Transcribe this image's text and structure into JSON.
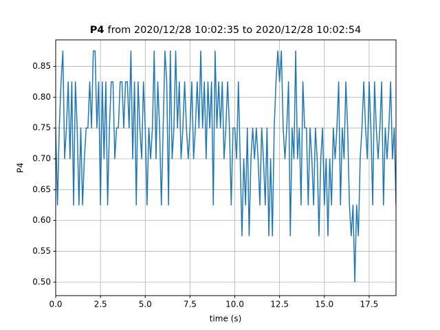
{
  "chart_data": {
    "type": "line",
    "title": {
      "bold": "P4",
      "text": "from 2020/12/28 10:02:35 to 2020/12/28 10:02:54"
    },
    "x_label": "time (s)",
    "y_label": "P4",
    "xlim": [
      0,
      19
    ],
    "ylim": [
      0.478,
      0.893
    ],
    "xticks": [
      {
        "value": 0,
        "label": "0.0"
      },
      2.5,
      {
        "value": 5,
        "label": "5.0"
      },
      7.5,
      {
        "value": 10,
        "label": "10.0"
      },
      12.5,
      {
        "value": 15,
        "label": "15.0"
      },
      17.5
    ],
    "yticks": [
      {
        "value": 0.5,
        "label": "0.50"
      },
      0.55,
      {
        "value": 0.6,
        "label": "0.60"
      },
      0.65,
      {
        "value": 0.7,
        "label": "0.70"
      },
      0.75,
      {
        "value": 0.8,
        "label": "0.80"
      },
      0.85
    ],
    "grid": true,
    "series": [
      {
        "color": "#1f77b4",
        "x": [
          0,
          0.1,
          0.2,
          0.3,
          0.4,
          0.5,
          0.6,
          0.7,
          0.8,
          0.9,
          1,
          1.1,
          1.2,
          1.3,
          1.4,
          1.5,
          1.6,
          1.7,
          1.8,
          1.9,
          2,
          2.1,
          2.2,
          2.3,
          2.4,
          2.5,
          2.6,
          2.7,
          2.8,
          2.9,
          3,
          3.1,
          3.2,
          3.3,
          3.4,
          3.5,
          3.6,
          3.7,
          3.8,
          3.9,
          4,
          4.1,
          4.2,
          4.3,
          4.4,
          4.5,
          4.6,
          4.7,
          4.8,
          4.9,
          5,
          5.1,
          5.2,
          5.3,
          5.4,
          5.5,
          5.6,
          5.7,
          5.8,
          5.9,
          6,
          6.1,
          6.2,
          6.3,
          6.4,
          6.5,
          6.6,
          6.7,
          6.8,
          6.9,
          7,
          7.1,
          7.2,
          7.3,
          7.4,
          7.5,
          7.6,
          7.7,
          7.8,
          7.9,
          8,
          8.1,
          8.2,
          8.3,
          8.4,
          8.5,
          8.6,
          8.7,
          8.8,
          8.9,
          9,
          9.1,
          9.2,
          9.3,
          9.4,
          9.5,
          9.6,
          9.7,
          9.8,
          9.9,
          10,
          10.1,
          10.2,
          10.3,
          10.4,
          10.5,
          10.6,
          10.7,
          10.8,
          10.9,
          11,
          11.1,
          11.2,
          11.3,
          11.4,
          11.5,
          11.6,
          11.7,
          11.8,
          11.9,
          12,
          12.1,
          12.2,
          12.3,
          12.4,
          12.5,
          12.6,
          12.7,
          12.8,
          12.9,
          13,
          13.1,
          13.2,
          13.3,
          13.4,
          13.5,
          13.6,
          13.7,
          13.8,
          13.9,
          14,
          14.1,
          14.2,
          14.3,
          14.4,
          14.5,
          14.6,
          14.7,
          14.8,
          14.9,
          15,
          15.1,
          15.2,
          15.3,
          15.4,
          15.5,
          15.6,
          15.7,
          15.8,
          15.9,
          16,
          16.1,
          16.2,
          16.3,
          16.4,
          16.5,
          16.6,
          16.7,
          16.8,
          16.9,
          17,
          17.1,
          17.2,
          17.3,
          17.4,
          17.5,
          17.6,
          17.7,
          17.8,
          17.9,
          18,
          18.1,
          18.2,
          18.3,
          18.4,
          18.5,
          18.6,
          18.7,
          18.8,
          18.9,
          19
        ],
        "values": [
          0.75,
          0.625,
          0.75,
          0.825,
          0.875,
          0.7,
          0.75,
          0.825,
          0.7,
          0.825,
          0.625,
          0.825,
          0.75,
          0.625,
          0.75,
          0.625,
          0.7,
          0.75,
          0.75,
          0.825,
          0.75,
          0.875,
          0.875,
          0.75,
          0.825,
          0.625,
          0.825,
          0.7,
          0.825,
          0.625,
          0.75,
          0.825,
          0.825,
          0.7,
          0.75,
          0.75,
          0.825,
          0.825,
          0.75,
          0.825,
          0.825,
          0.75,
          0.875,
          0.7,
          0.825,
          0.625,
          0.825,
          0.75,
          0.7,
          0.825,
          0.75,
          0.625,
          0.75,
          0.7,
          0.75,
          0.875,
          0.7,
          0.825,
          0.75,
          0.625,
          0.75,
          0.875,
          0.825,
          0.625,
          0.875,
          0.7,
          0.75,
          0.875,
          0.75,
          0.825,
          0.7,
          0.75,
          0.825,
          0.75,
          0.7,
          0.75,
          0.825,
          0.7,
          0.75,
          0.825,
          0.75,
          0.875,
          0.75,
          0.825,
          0.7,
          0.825,
          0.75,
          0.825,
          0.625,
          0.875,
          0.75,
          0.825,
          0.75,
          0.825,
          0.7,
          0.75,
          0.825,
          0.75,
          0.625,
          0.75,
          0.75,
          0.7,
          0.825,
          0.7,
          0.575,
          0.7,
          0.625,
          0.75,
          0.575,
          0.7,
          0.75,
          0.7,
          0.75,
          0.7,
          0.625,
          0.75,
          0.7,
          0.625,
          0.75,
          0.575,
          0.7,
          0.575,
          0.75,
          0.825,
          0.875,
          0.825,
          0.875,
          0.75,
          0.7,
          0.75,
          0.825,
          0.575,
          0.75,
          0.7,
          0.875,
          0.7,
          0.75,
          0.625,
          0.825,
          0.75,
          0.75,
          0.625,
          0.75,
          0.7,
          0.625,
          0.75,
          0.7,
          0.575,
          0.7,
          0.75,
          0.625,
          0.7,
          0.575,
          0.7,
          0.625,
          0.75,
          0.7,
          0.75,
          0.825,
          0.625,
          0.75,
          0.7,
          0.825,
          0.75,
          0.625,
          0.575,
          0.625,
          0.5,
          0.625,
          0.575,
          0.7,
          0.75,
          0.825,
          0.75,
          0.7,
          0.825,
          0.75,
          0.625,
          0.825,
          0.75,
          0.7,
          0.75,
          0.825,
          0.625,
          0.75,
          0.7,
          0.75,
          0.825,
          0.7,
          0.75,
          0.625
        ]
      }
    ]
  }
}
